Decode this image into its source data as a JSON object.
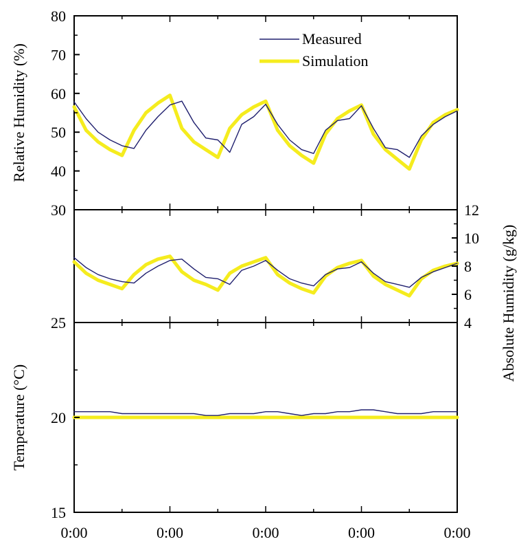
{
  "chart_data": {
    "type": "line",
    "x_tick_labels": [
      "0:00",
      "0:00",
      "0:00",
      "0:00",
      "0:00"
    ],
    "x": [
      0,
      3,
      6,
      9,
      12,
      15,
      18,
      21,
      24,
      27,
      30,
      33,
      36,
      39,
      42,
      45,
      48,
      51,
      54,
      57,
      60,
      63,
      66,
      69,
      72,
      75,
      78,
      81,
      84,
      87,
      90,
      93,
      96
    ],
    "legend": {
      "position": "top-right",
      "entries": [
        "Measured",
        "Simulation"
      ]
    },
    "colors": {
      "measured": "#1f1f6e",
      "simulation": "#f5ec1e"
    },
    "panels": [
      {
        "id": "relative-humidity",
        "ylabel": "Relative Humidity (%)",
        "yaxis": "left",
        "ylim": [
          30,
          80
        ],
        "y_ticks": [
          30,
          40,
          50,
          60,
          70,
          80
        ],
        "series": [
          {
            "name": "Measured",
            "values": [
              57.8,
              53.5,
              50.0,
              48.0,
              46.5,
              45.8,
              50.5,
              54.0,
              57.0,
              58.0,
              52.5,
              48.5,
              48.0,
              44.8,
              52.0,
              54.0,
              57.2,
              52.0,
              48.0,
              45.5,
              44.5,
              50.5,
              53.0,
              53.5,
              56.8,
              51.0,
              46.0,
              45.5,
              43.5,
              49.0,
              52.0,
              54.0,
              55.5
            ]
          },
          {
            "name": "Simulation",
            "values": [
              56.5,
              50.5,
              47.5,
              45.5,
              44.0,
              50.5,
              55.0,
              57.5,
              59.5,
              51.0,
              47.5,
              45.5,
              43.5,
              51.0,
              54.5,
              56.5,
              58.0,
              50.5,
              46.5,
              44.0,
              42.0,
              49.5,
              53.5,
              55.5,
              57.0,
              49.5,
              45.5,
              43.0,
              40.5,
              48.0,
              52.5,
              54.5,
              55.8
            ]
          }
        ]
      },
      {
        "id": "absolute-humidity",
        "ylabel": "Absolute Humidity (g/kg)",
        "yaxis": "right",
        "ylim": [
          4,
          12
        ],
        "y_ticks": [
          4,
          6,
          8,
          10,
          12
        ],
        "series": [
          {
            "name": "Measured",
            "values": [
              8.6,
              7.9,
              7.4,
              7.1,
              6.9,
              6.8,
              7.5,
              8.0,
              8.4,
              8.5,
              7.8,
              7.2,
              7.1,
              6.7,
              7.7,
              8.0,
              8.4,
              7.7,
              7.1,
              6.8,
              6.6,
              7.4,
              7.8,
              7.9,
              8.3,
              7.5,
              6.9,
              6.7,
              6.5,
              7.2,
              7.6,
              7.9,
              8.2
            ]
          },
          {
            "name": "Simulation",
            "values": [
              8.3,
              7.5,
              7.0,
              6.7,
              6.4,
              7.4,
              8.1,
              8.5,
              8.7,
              7.6,
              7.0,
              6.7,
              6.3,
              7.5,
              8.0,
              8.3,
              8.6,
              7.4,
              6.8,
              6.4,
              6.1,
              7.3,
              7.9,
              8.2,
              8.4,
              7.3,
              6.7,
              6.3,
              5.9,
              7.1,
              7.7,
              8.0,
              8.2
            ]
          }
        ]
      },
      {
        "id": "temperature",
        "ylabel": "Temperature (°C)",
        "yaxis": "left",
        "ylim": [
          15,
          25
        ],
        "y_ticks": [
          15,
          20,
          25
        ],
        "series": [
          {
            "name": "Measured",
            "values": [
              20.3,
              20.3,
              20.3,
              20.3,
              20.2,
              20.2,
              20.2,
              20.2,
              20.2,
              20.2,
              20.2,
              20.1,
              20.1,
              20.2,
              20.2,
              20.2,
              20.3,
              20.3,
              20.2,
              20.1,
              20.2,
              20.2,
              20.3,
              20.3,
              20.4,
              20.4,
              20.3,
              20.2,
              20.2,
              20.2,
              20.3,
              20.3,
              20.3
            ]
          },
          {
            "name": "Simulation",
            "values": [
              20.0,
              20.0,
              20.0,
              20.0,
              20.0,
              20.0,
              20.0,
              20.0,
              20.0,
              20.0,
              20.0,
              20.0,
              20.0,
              20.0,
              20.0,
              20.0,
              20.0,
              20.0,
              20.0,
              20.0,
              20.0,
              20.0,
              20.0,
              20.0,
              20.0,
              20.0,
              20.0,
              20.0,
              20.0,
              20.0,
              20.0,
              20.0,
              20.0
            ]
          }
        ]
      }
    ]
  }
}
